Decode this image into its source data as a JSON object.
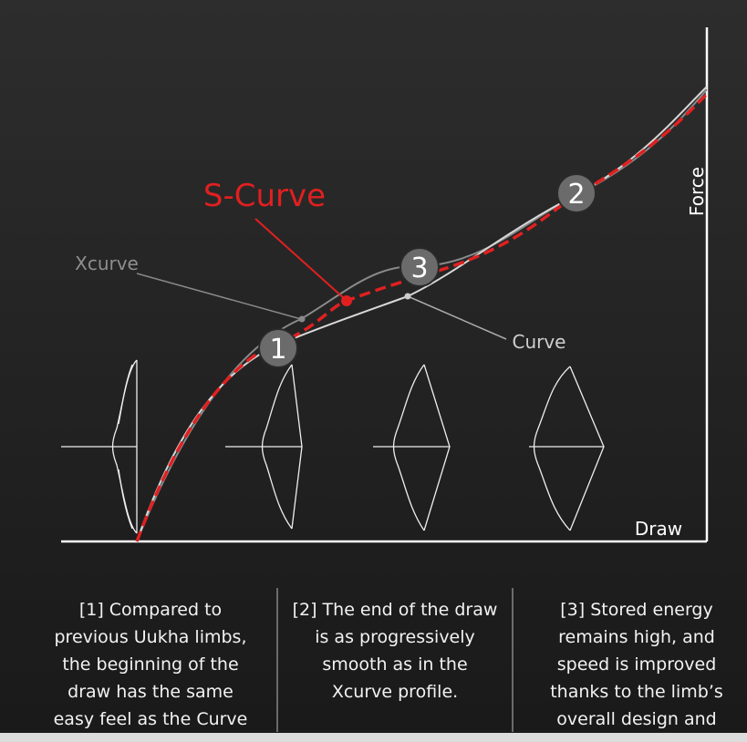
{
  "diagram": {
    "labels": {
      "s_curve": "S-Curve",
      "xcurve": "Xcurve",
      "curve": "Curve",
      "force": "Force",
      "draw": "Draw"
    },
    "markers": [
      "1",
      "2",
      "3"
    ]
  },
  "columns": [
    {
      "lines": [
        "[1] Compared to",
        "previous Uukha limbs,",
        "the beginning of the",
        "draw has the same",
        "easy feel as the Curve"
      ]
    },
    {
      "lines": [
        "[2] The end of the draw",
        "is as progressively",
        "smooth as in the",
        "Xcurve profile."
      ]
    },
    {
      "lines": [
        "[3] Stored energy",
        "remains high, and",
        "speed is improved",
        "thanks to the limb’s",
        "overall design and"
      ]
    }
  ]
}
